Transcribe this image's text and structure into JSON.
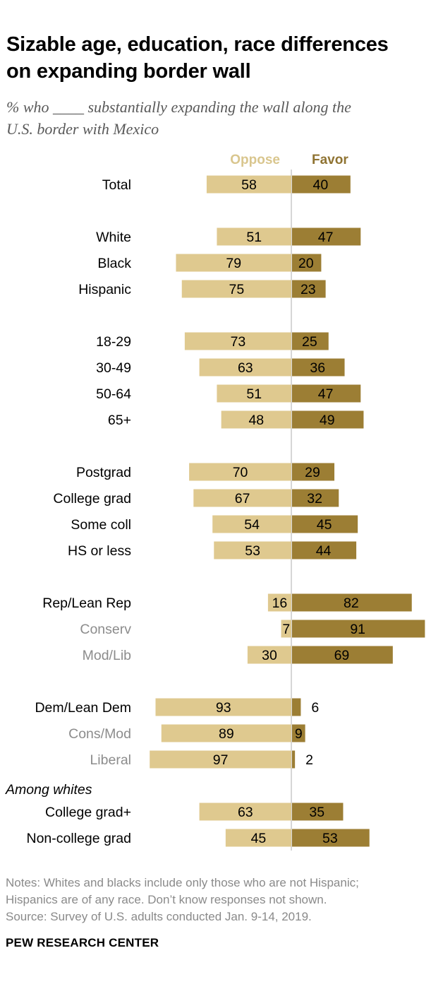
{
  "header": {
    "title_line1": "Sizable age, education, race differences",
    "title_line2": "on expanding border wall",
    "subtitle_line1": "% who ____ substantially expanding the wall along the",
    "subtitle_line2": "U.S. border with Mexico"
  },
  "chart_data": {
    "type": "bar",
    "orientation": "horizontal-diverging",
    "legend": [
      "Oppose",
      "Favor"
    ],
    "section_label": "Among whites",
    "categories": [
      "Total",
      "White",
      "Black",
      "Hispanic",
      "18-29",
      "30-49",
      "50-64",
      "65+",
      "Postgrad",
      "College grad",
      "Some coll",
      "HS or less",
      "Rep/Lean Rep",
      "Conserv",
      "Mod/Lib",
      "Dem/Lean Dem",
      "Cons/Mod",
      "Liberal",
      "College grad+",
      "Non-college grad"
    ],
    "series": [
      {
        "name": "Oppose",
        "values": [
          58,
          51,
          79,
          75,
          73,
          63,
          51,
          48,
          70,
          67,
          54,
          53,
          16,
          7,
          30,
          93,
          89,
          97,
          63,
          45
        ]
      },
      {
        "name": "Favor",
        "values": [
          40,
          47,
          20,
          23,
          25,
          36,
          47,
          49,
          29,
          32,
          45,
          44,
          82,
          91,
          69,
          6,
          9,
          2,
          35,
          53
        ]
      }
    ],
    "colors": {
      "oppose": "#dfc98f",
      "favor": "#9c7e34",
      "legend_oppose": "#d9c68e",
      "legend_favor": "#8f7332",
      "sub_label": "#8c8c8c",
      "axis": "#c8c8c8"
    }
  },
  "notes": {
    "line1": "Notes: Whites and blacks include only those who are not Hispanic;",
    "line2": "Hispanics are of any race. Don’t know responses not shown.",
    "line3": "Source: Survey of U.S. adults conducted Jan. 9-14, 2019."
  },
  "brand": "PEW RESEARCH CENTER"
}
